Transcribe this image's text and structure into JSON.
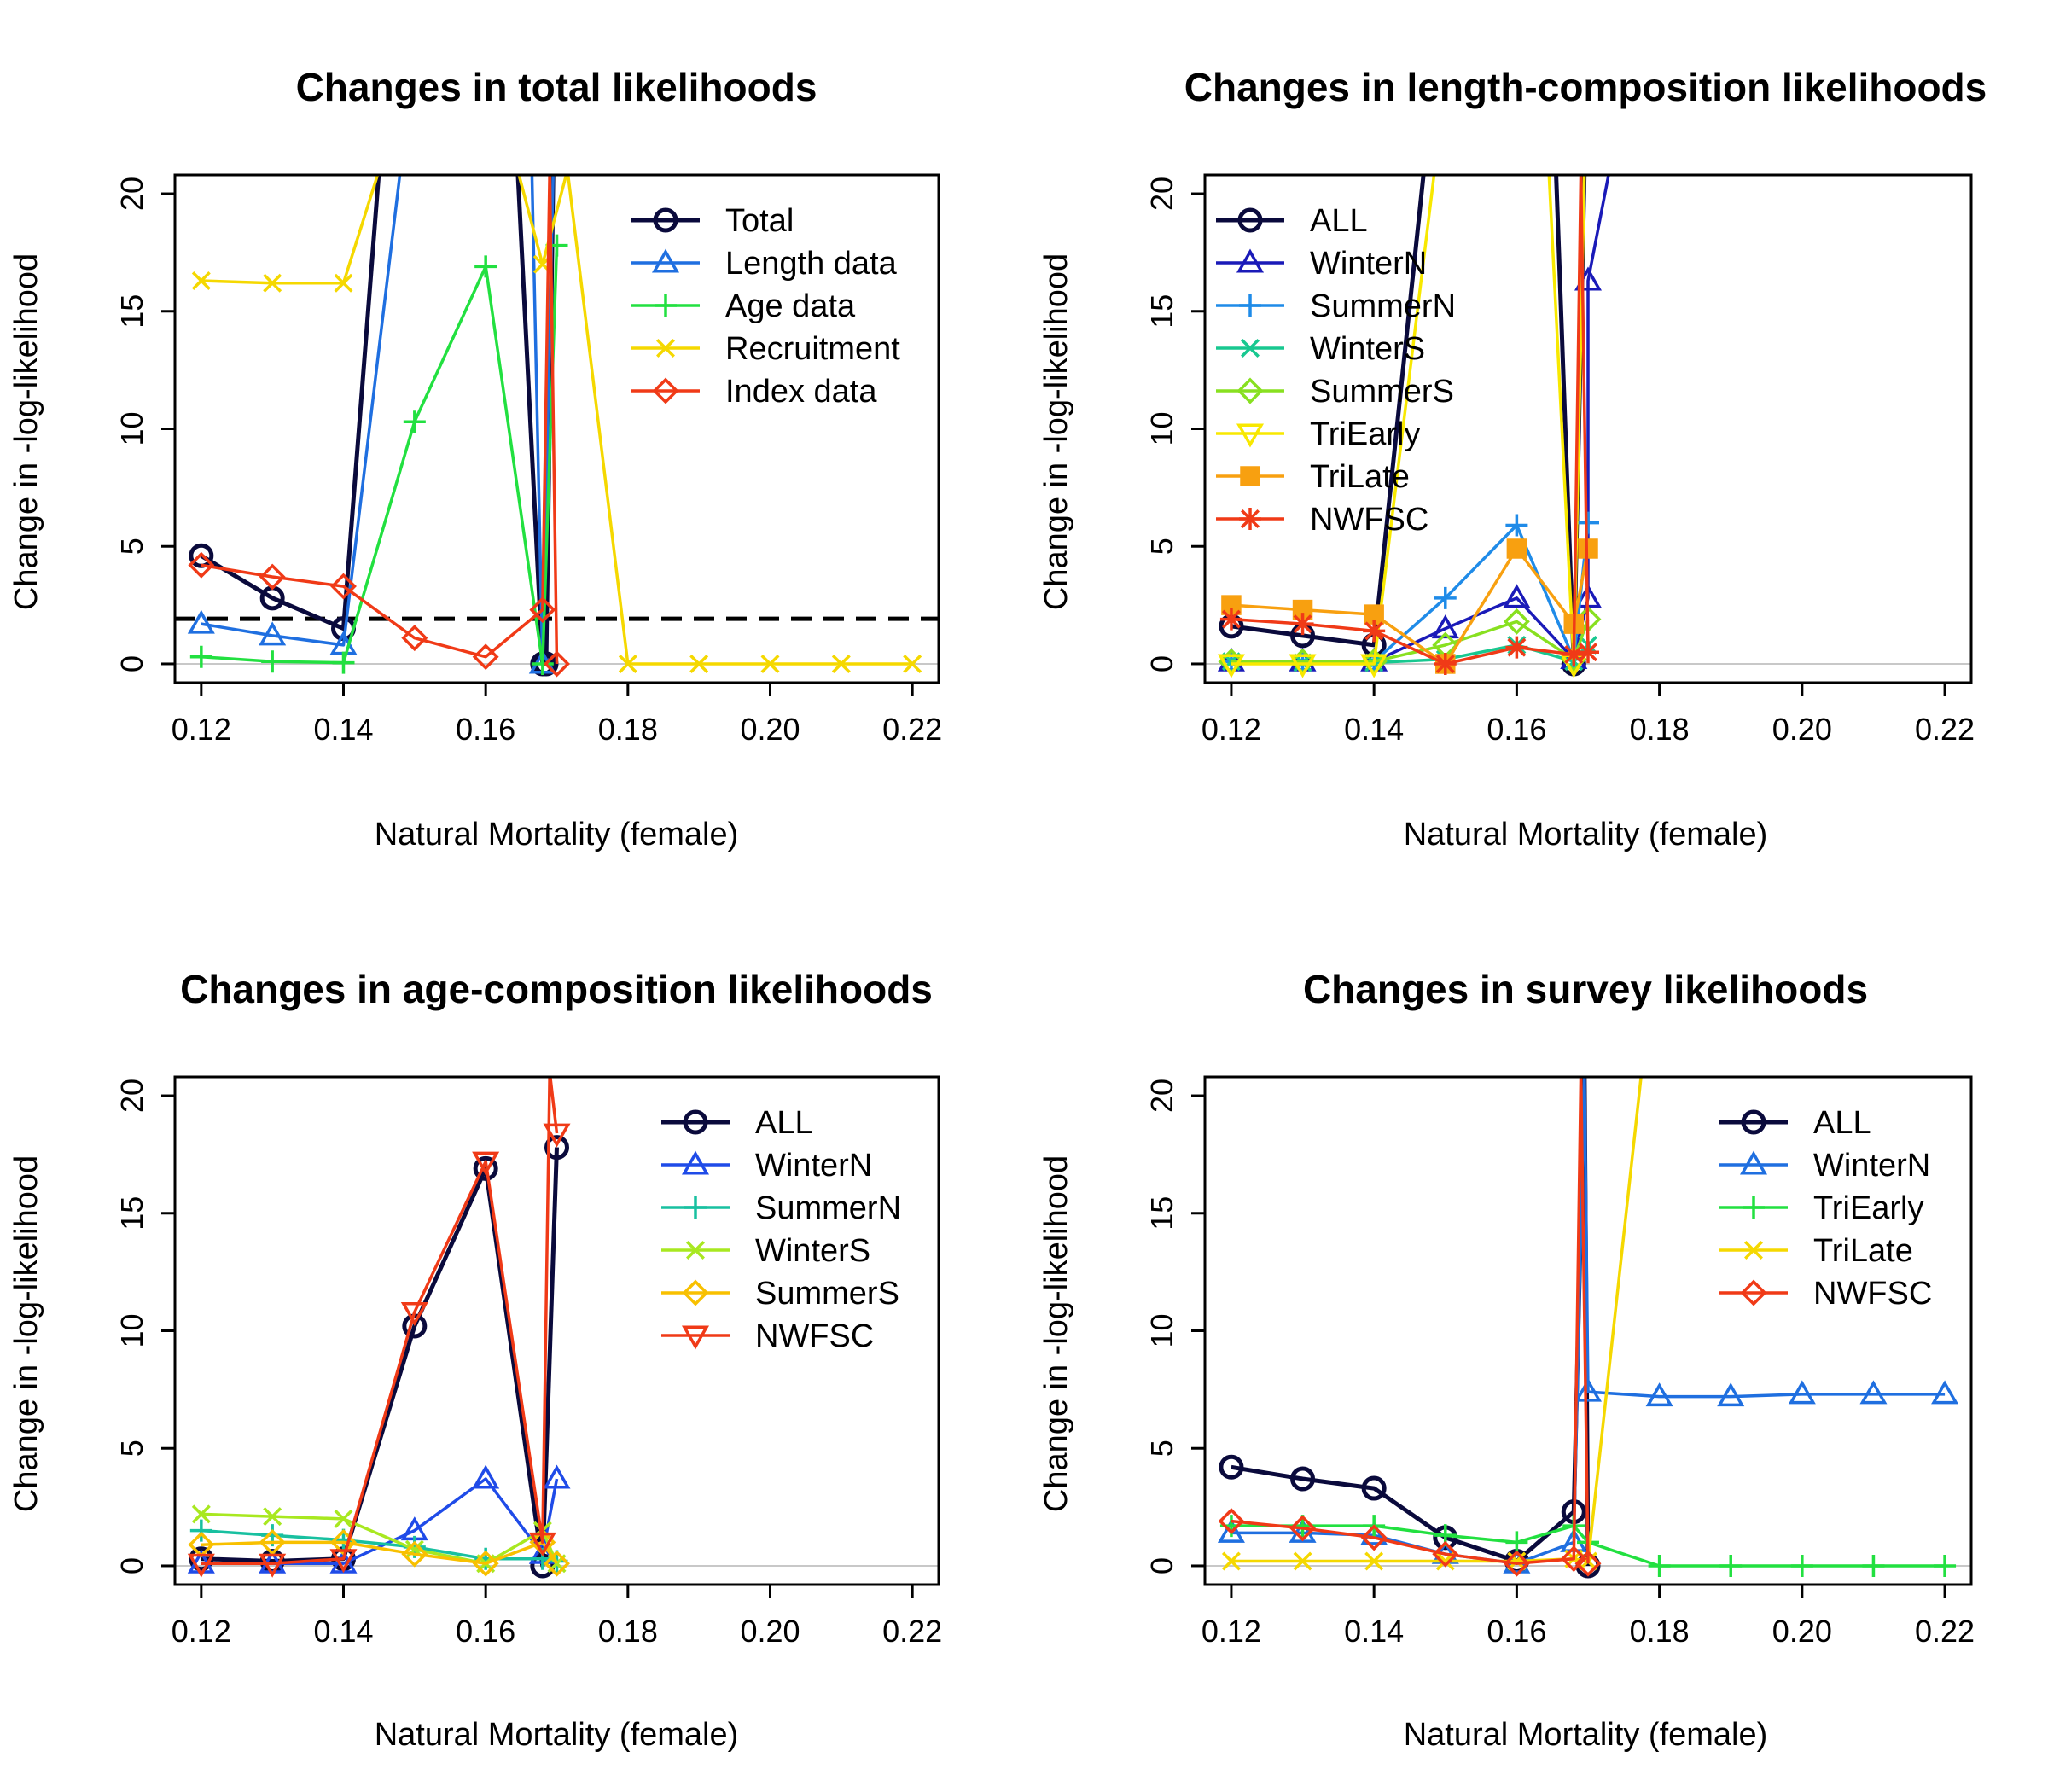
{
  "chart_data": [
    {
      "type": "line",
      "title": "Changes in total likelihoods",
      "xlabel": "Natural Mortality (female)",
      "ylabel": "Change in -log-likelihood",
      "xlim": [
        0.1163,
        0.2237
      ],
      "ylim": [
        -0.8,
        20.8
      ],
      "xticks": [
        "0.12",
        "0.14",
        "0.16",
        "0.18",
        "0.20",
        "0.22"
      ],
      "yticks": [
        "0",
        "5",
        "10",
        "15",
        "20"
      ],
      "legend_position": "top-right",
      "reference_line": {
        "y": 1.92,
        "style": "dashed",
        "color": "#000000"
      },
      "series": [
        {
          "name": "Total",
          "color": "#0a0a3c",
          "marker": "circle",
          "lw": 5,
          "x": [
            0.12,
            0.13,
            0.14,
            0.145,
            0.1645,
            0.168,
            0.1685,
            0.1695
          ],
          "y": [
            4.6,
            2.8,
            1.5,
            21,
            21,
            0,
            0,
            21
          ]
        },
        {
          "name": "Length data",
          "color": "#1f6fe0",
          "marker": "triangle",
          "lw": 3.5,
          "x": [
            0.12,
            0.13,
            0.14,
            0.148,
            0.1665,
            0.168,
            0.1695
          ],
          "y": [
            1.7,
            1.2,
            0.8,
            21,
            21,
            0,
            21
          ]
        },
        {
          "name": "Age data",
          "color": "#22e040",
          "marker": "plus",
          "lw": 3.5,
          "x": [
            0.12,
            0.13,
            0.14,
            0.15,
            0.16,
            0.168,
            0.17
          ],
          "y": [
            0.3,
            0.1,
            0.05,
            10.3,
            16.9,
            0,
            17.8
          ]
        },
        {
          "name": "Recruitment",
          "color": "#f5d800",
          "marker": "x",
          "lw": 3.5,
          "x": [
            0.12,
            0.13,
            0.14,
            0.145,
            0.1645,
            0.168,
            0.1715,
            0.18,
            0.19,
            0.2,
            0.21,
            0.22
          ],
          "y": [
            16.3,
            16.2,
            16.2,
            21,
            21,
            17.0,
            21,
            0,
            0,
            0,
            0,
            0
          ]
        },
        {
          "name": "Index data",
          "color": "#f03a17",
          "marker": "diamond",
          "lw": 3.5,
          "x": [
            0.12,
            0.13,
            0.14,
            0.15,
            0.16,
            0.168,
            0.169,
            0.17
          ],
          "y": [
            4.2,
            3.7,
            3.3,
            1.1,
            0.3,
            2.3,
            21,
            0
          ]
        }
      ]
    },
    {
      "type": "line",
      "title": "Changes in length-composition likelihoods",
      "xlabel": "Natural Mortality (female)",
      "ylabel": "Change in -log-likelihood",
      "xlim": [
        0.1163,
        0.2237
      ],
      "ylim": [
        -0.8,
        20.8
      ],
      "xticks": [
        "0.12",
        "0.14",
        "0.16",
        "0.18",
        "0.20",
        "0.22"
      ],
      "yticks": [
        "0",
        "5",
        "10",
        "15",
        "20"
      ],
      "legend_position": "top-left",
      "series": [
        {
          "name": "ALL",
          "color": "#0a0a3c",
          "marker": "circle",
          "lw": 5,
          "x": [
            0.12,
            0.13,
            0.14,
            0.147,
            0.1655,
            0.168,
            0.1695
          ],
          "y": [
            1.6,
            1.2,
            0.8,
            21,
            21,
            0,
            21
          ]
        },
        {
          "name": "WinterN",
          "color": "#1a1ab8",
          "marker": "triangle",
          "lw": 3.5,
          "x": [
            0.12,
            0.13,
            0.14,
            0.15,
            0.16,
            0.168,
            0.17,
            0.17,
            0.173
          ],
          "y": [
            0.1,
            0.1,
            0.1,
            1.5,
            2.8,
            0.2,
            2.8,
            16.3,
            21
          ]
        },
        {
          "name": "SummerN",
          "color": "#1f8be8",
          "marker": "plus",
          "lw": 3.5,
          "x": [
            0.12,
            0.13,
            0.14,
            0.15,
            0.16,
            0.168,
            0.17
          ],
          "y": [
            0.1,
            0.1,
            0.1,
            2.8,
            5.9,
            0.2,
            6.0
          ]
        },
        {
          "name": "WinterS",
          "color": "#18c890",
          "marker": "x",
          "lw": 3.5,
          "x": [
            0.12,
            0.13,
            0.14,
            0.15,
            0.16,
            0.168,
            0.17
          ],
          "y": [
            0.1,
            0.05,
            0.05,
            0.2,
            0.8,
            0.1,
            0.8
          ]
        },
        {
          "name": "SummerS",
          "color": "#88e020",
          "marker": "diamond",
          "lw": 3.5,
          "x": [
            0.12,
            0.13,
            0.14,
            0.15,
            0.16,
            0.168,
            0.17
          ],
          "y": [
            0.1,
            0.1,
            0.1,
            0.8,
            1.8,
            0.2,
            1.9
          ]
        },
        {
          "name": "TriEarly",
          "color": "#f8e800",
          "marker": "tri-down",
          "lw": 3.5,
          "x": [
            0.12,
            0.13,
            0.14,
            0.1485,
            0.1645,
            0.168,
            0.1695
          ],
          "y": [
            0,
            0,
            0,
            21,
            21,
            0,
            21
          ]
        },
        {
          "name": "TriLate",
          "color": "#f8a010",
          "marker": "square",
          "lw": 3.5,
          "x": [
            0.12,
            0.13,
            0.14,
            0.15,
            0.16,
            0.168,
            0.17
          ],
          "y": [
            2.5,
            2.3,
            2.1,
            0,
            4.9,
            1.7,
            4.9
          ]
        },
        {
          "name": "NWFSC",
          "color": "#f03a17",
          "marker": "asterisk",
          "lw": 3.5,
          "x": [
            0.12,
            0.13,
            0.14,
            0.15,
            0.16,
            0.168,
            0.169,
            0.17
          ],
          "y": [
            1.9,
            1.7,
            1.4,
            0,
            0.7,
            0.4,
            21,
            0.5
          ]
        }
      ]
    },
    {
      "type": "line",
      "title": "Changes in age-composition likelihoods",
      "xlabel": "Natural Mortality (female)",
      "ylabel": "Change in -log-likelihood",
      "xlim": [
        0.1163,
        0.2237
      ],
      "ylim": [
        -0.8,
        20.8
      ],
      "xticks": [
        "0.12",
        "0.14",
        "0.16",
        "0.18",
        "0.20",
        "0.22"
      ],
      "yticks": [
        "0",
        "5",
        "10",
        "15",
        "20"
      ],
      "legend_position": "top-right",
      "series": [
        {
          "name": "ALL",
          "color": "#0a0a3c",
          "marker": "circle",
          "lw": 5,
          "x": [
            0.12,
            0.13,
            0.14,
            0.15,
            0.16,
            0.168,
            0.17
          ],
          "y": [
            0.3,
            0.2,
            0.3,
            10.2,
            16.9,
            0,
            17.8
          ]
        },
        {
          "name": "WinterN",
          "color": "#1f4be8",
          "marker": "triangle",
          "lw": 3.5,
          "x": [
            0.12,
            0.13,
            0.14,
            0.15,
            0.16,
            0.168,
            0.17
          ],
          "y": [
            0.1,
            0.1,
            0.1,
            1.5,
            3.7,
            0.5,
            3.7
          ]
        },
        {
          "name": "SummerN",
          "color": "#18c0a0",
          "marker": "plus",
          "lw": 3.5,
          "x": [
            0.12,
            0.13,
            0.14,
            0.15,
            0.16,
            0.168,
            0.17
          ],
          "y": [
            1.5,
            1.3,
            1.1,
            0.8,
            0.3,
            0.3,
            0.2
          ]
        },
        {
          "name": "WinterS",
          "color": "#a8e820",
          "marker": "x",
          "lw": 3.5,
          "x": [
            0.12,
            0.13,
            0.14,
            0.15,
            0.16,
            0.168,
            0.17
          ],
          "y": [
            2.2,
            2.1,
            2.0,
            0.7,
            0.1,
            1.5,
            0.1
          ]
        },
        {
          "name": "SummerS",
          "color": "#f8c000",
          "marker": "diamond",
          "lw": 3.5,
          "x": [
            0.12,
            0.13,
            0.14,
            0.15,
            0.16,
            0.168,
            0.17
          ],
          "y": [
            0.9,
            1.0,
            1.0,
            0.5,
            0.1,
            1.0,
            0.1
          ]
        },
        {
          "name": "NWFSC",
          "color": "#f03a17",
          "marker": "tri-down",
          "lw": 3.5,
          "x": [
            0.12,
            0.13,
            0.14,
            0.15,
            0.16,
            0.168,
            0.169,
            0.17
          ],
          "y": [
            0.1,
            0.1,
            0.3,
            10.8,
            17.2,
            1.0,
            21,
            18.4
          ]
        }
      ]
    },
    {
      "type": "line",
      "title": "Changes in survey likelihoods",
      "xlabel": "Natural Mortality (female)",
      "ylabel": "Change in -log-likelihood",
      "xlim": [
        0.1163,
        0.2237
      ],
      "ylim": [
        -0.8,
        20.8
      ],
      "xticks": [
        "0.12",
        "0.14",
        "0.16",
        "0.18",
        "0.20",
        "0.22"
      ],
      "yticks": [
        "0",
        "5",
        "10",
        "15",
        "20"
      ],
      "legend_position": "top-right",
      "series": [
        {
          "name": "ALL",
          "color": "#0a0a3c",
          "marker": "circle",
          "lw": 5,
          "x": [
            0.12,
            0.13,
            0.14,
            0.15,
            0.16,
            0.168,
            0.1695,
            0.17
          ],
          "y": [
            4.2,
            3.7,
            3.3,
            1.2,
            0.2,
            2.3,
            21,
            0
          ]
        },
        {
          "name": "WinterN",
          "color": "#1f6fe0",
          "marker": "triangle",
          "lw": 3.5,
          "x": [
            0.12,
            0.13,
            0.14,
            0.15,
            0.16,
            0.168,
            0.1695,
            0.17,
            0.18,
            0.19,
            0.2,
            0.21,
            0.22
          ],
          "y": [
            1.4,
            1.4,
            1.3,
            0.5,
            0.1,
            1.0,
            21,
            7.4,
            7.2,
            7.2,
            7.3,
            7.3,
            7.3
          ]
        },
        {
          "name": "TriEarly",
          "color": "#22e040",
          "marker": "plus",
          "lw": 3.5,
          "x": [
            0.12,
            0.13,
            0.14,
            0.15,
            0.16,
            0.168,
            0.17,
            0.18,
            0.19,
            0.2,
            0.21,
            0.22
          ],
          "y": [
            1.7,
            1.7,
            1.7,
            1.3,
            1.0,
            1.7,
            1.0,
            0,
            0,
            0,
            0,
            0
          ]
        },
        {
          "name": "TriLate",
          "color": "#f5d800",
          "marker": "x",
          "lw": 3.5,
          "x": [
            0.12,
            0.13,
            0.14,
            0.15,
            0.16,
            0.168,
            0.17,
            0.1775
          ],
          "y": [
            0.2,
            0.2,
            0.2,
            0.2,
            0.2,
            0.3,
            0.2,
            21
          ]
        },
        {
          "name": "NWFSC",
          "color": "#f03a17",
          "marker": "diamond",
          "lw": 3.5,
          "x": [
            0.12,
            0.13,
            0.14,
            0.15,
            0.16,
            0.168,
            0.169,
            0.17
          ],
          "y": [
            1.9,
            1.6,
            1.2,
            0.5,
            0.1,
            0.3,
            21,
            0.1
          ]
        }
      ]
    }
  ]
}
